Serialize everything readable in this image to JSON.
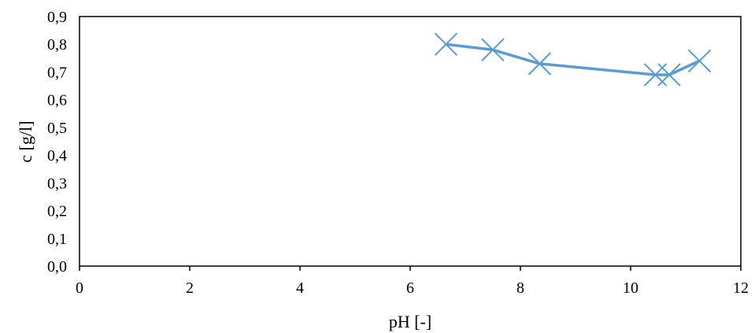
{
  "chart_data": {
    "type": "scatter",
    "title": "",
    "xlabel": "pH [-]",
    "ylabel": "c [g/l]",
    "xlim": [
      0,
      12
    ],
    "ylim": [
      0,
      0.9
    ],
    "xticks": [
      0,
      2,
      4,
      6,
      8,
      10,
      12
    ],
    "yticks": [
      0.0,
      0.1,
      0.2,
      0.3,
      0.4,
      0.5,
      0.6,
      0.7,
      0.8,
      0.9
    ],
    "xtick_labels": [
      "0",
      "2",
      "4",
      "6",
      "8",
      "10",
      "12"
    ],
    "ytick_labels": [
      "0,0",
      "0,1",
      "0,2",
      "0,3",
      "0,4",
      "0,5",
      "0,6",
      "0,7",
      "0,8",
      "0,9"
    ],
    "grid": false,
    "legend": "none",
    "series": [
      {
        "marker": "x",
        "line": true,
        "color": "#5b9bd5",
        "x": [
          6.65,
          7.5,
          8.35,
          10.45,
          10.7,
          11.25
        ],
        "y": [
          0.8,
          0.78,
          0.73,
          0.69,
          0.69,
          0.74
        ]
      }
    ]
  }
}
